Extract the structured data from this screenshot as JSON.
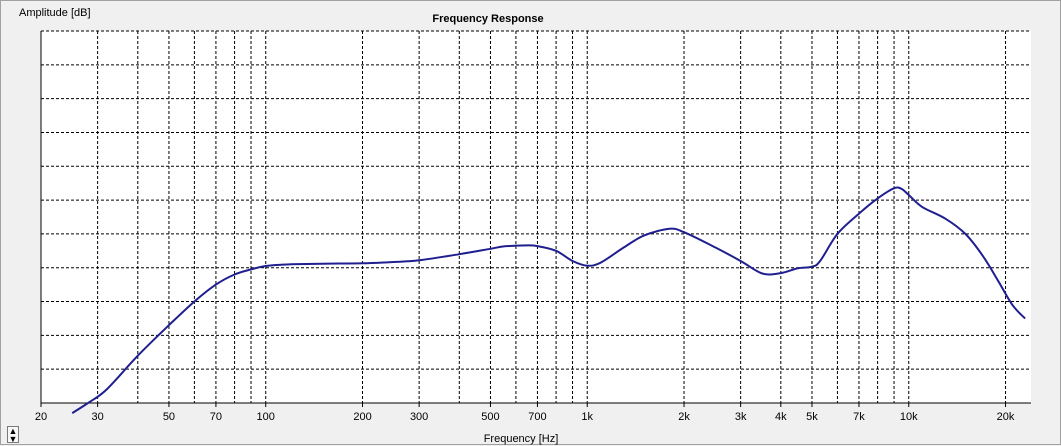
{
  "chart_data": {
    "type": "line",
    "title": "Frequency Response",
    "xlabel": "Frequency [Hz]",
    "ylabel": "Amplitude [dB]",
    "x_scale": "log",
    "xlim": [
      20,
      24000
    ],
    "ylim": [
      0,
      11
    ],
    "grid": true,
    "x_ticks": [
      {
        "value": 20,
        "label": "20"
      },
      {
        "value": 30,
        "label": "30"
      },
      {
        "value": 50,
        "label": "50"
      },
      {
        "value": 70,
        "label": "70"
      },
      {
        "value": 100,
        "label": "100"
      },
      {
        "value": 200,
        "label": "200"
      },
      {
        "value": 300,
        "label": "300"
      },
      {
        "value": 500,
        "label": "500"
      },
      {
        "value": 700,
        "label": "700"
      },
      {
        "value": 1000,
        "label": "1k"
      },
      {
        "value": 2000,
        "label": "2k"
      },
      {
        "value": 3000,
        "label": "3k"
      },
      {
        "value": 4000,
        "label": "4k"
      },
      {
        "value": 5000,
        "label": "5k"
      },
      {
        "value": 7000,
        "label": "7k"
      },
      {
        "value": 10000,
        "label": "10k"
      },
      {
        "value": 20000,
        "label": "20k"
      }
    ],
    "x_minor": [
      40,
      60,
      80,
      90,
      400,
      600,
      800,
      900,
      6000,
      8000,
      9000
    ],
    "series": [
      {
        "color": "#1f1f8f",
        "points": [
          [
            25,
            -0.3
          ],
          [
            28,
            0.0
          ],
          [
            32,
            0.4
          ],
          [
            40,
            1.4
          ],
          [
            50,
            2.3
          ],
          [
            60,
            3.0
          ],
          [
            70,
            3.5
          ],
          [
            80,
            3.8
          ],
          [
            90,
            3.95
          ],
          [
            100,
            4.05
          ],
          [
            120,
            4.1
          ],
          [
            150,
            4.12
          ],
          [
            200,
            4.13
          ],
          [
            250,
            4.17
          ],
          [
            300,
            4.22
          ],
          [
            400,
            4.4
          ],
          [
            500,
            4.56
          ],
          [
            550,
            4.63
          ],
          [
            650,
            4.66
          ],
          [
            700,
            4.64
          ],
          [
            800,
            4.5
          ],
          [
            900,
            4.2
          ],
          [
            1000,
            4.06
          ],
          [
            1100,
            4.15
          ],
          [
            1300,
            4.6
          ],
          [
            1500,
            4.95
          ],
          [
            1800,
            5.15
          ],
          [
            2000,
            5.05
          ],
          [
            2500,
            4.6
          ],
          [
            3000,
            4.2
          ],
          [
            3500,
            3.83
          ],
          [
            4000,
            3.84
          ],
          [
            4500,
            3.98
          ],
          [
            5000,
            4.03
          ],
          [
            5300,
            4.2
          ],
          [
            6000,
            5.0
          ],
          [
            7000,
            5.6
          ],
          [
            8000,
            6.05
          ],
          [
            9000,
            6.35
          ],
          [
            9500,
            6.33
          ],
          [
            10000,
            6.15
          ],
          [
            11000,
            5.8
          ],
          [
            13000,
            5.45
          ],
          [
            15000,
            5.0
          ],
          [
            17000,
            4.35
          ],
          [
            19000,
            3.6
          ],
          [
            21000,
            2.9
          ],
          [
            23000,
            2.5
          ]
        ]
      }
    ]
  }
}
